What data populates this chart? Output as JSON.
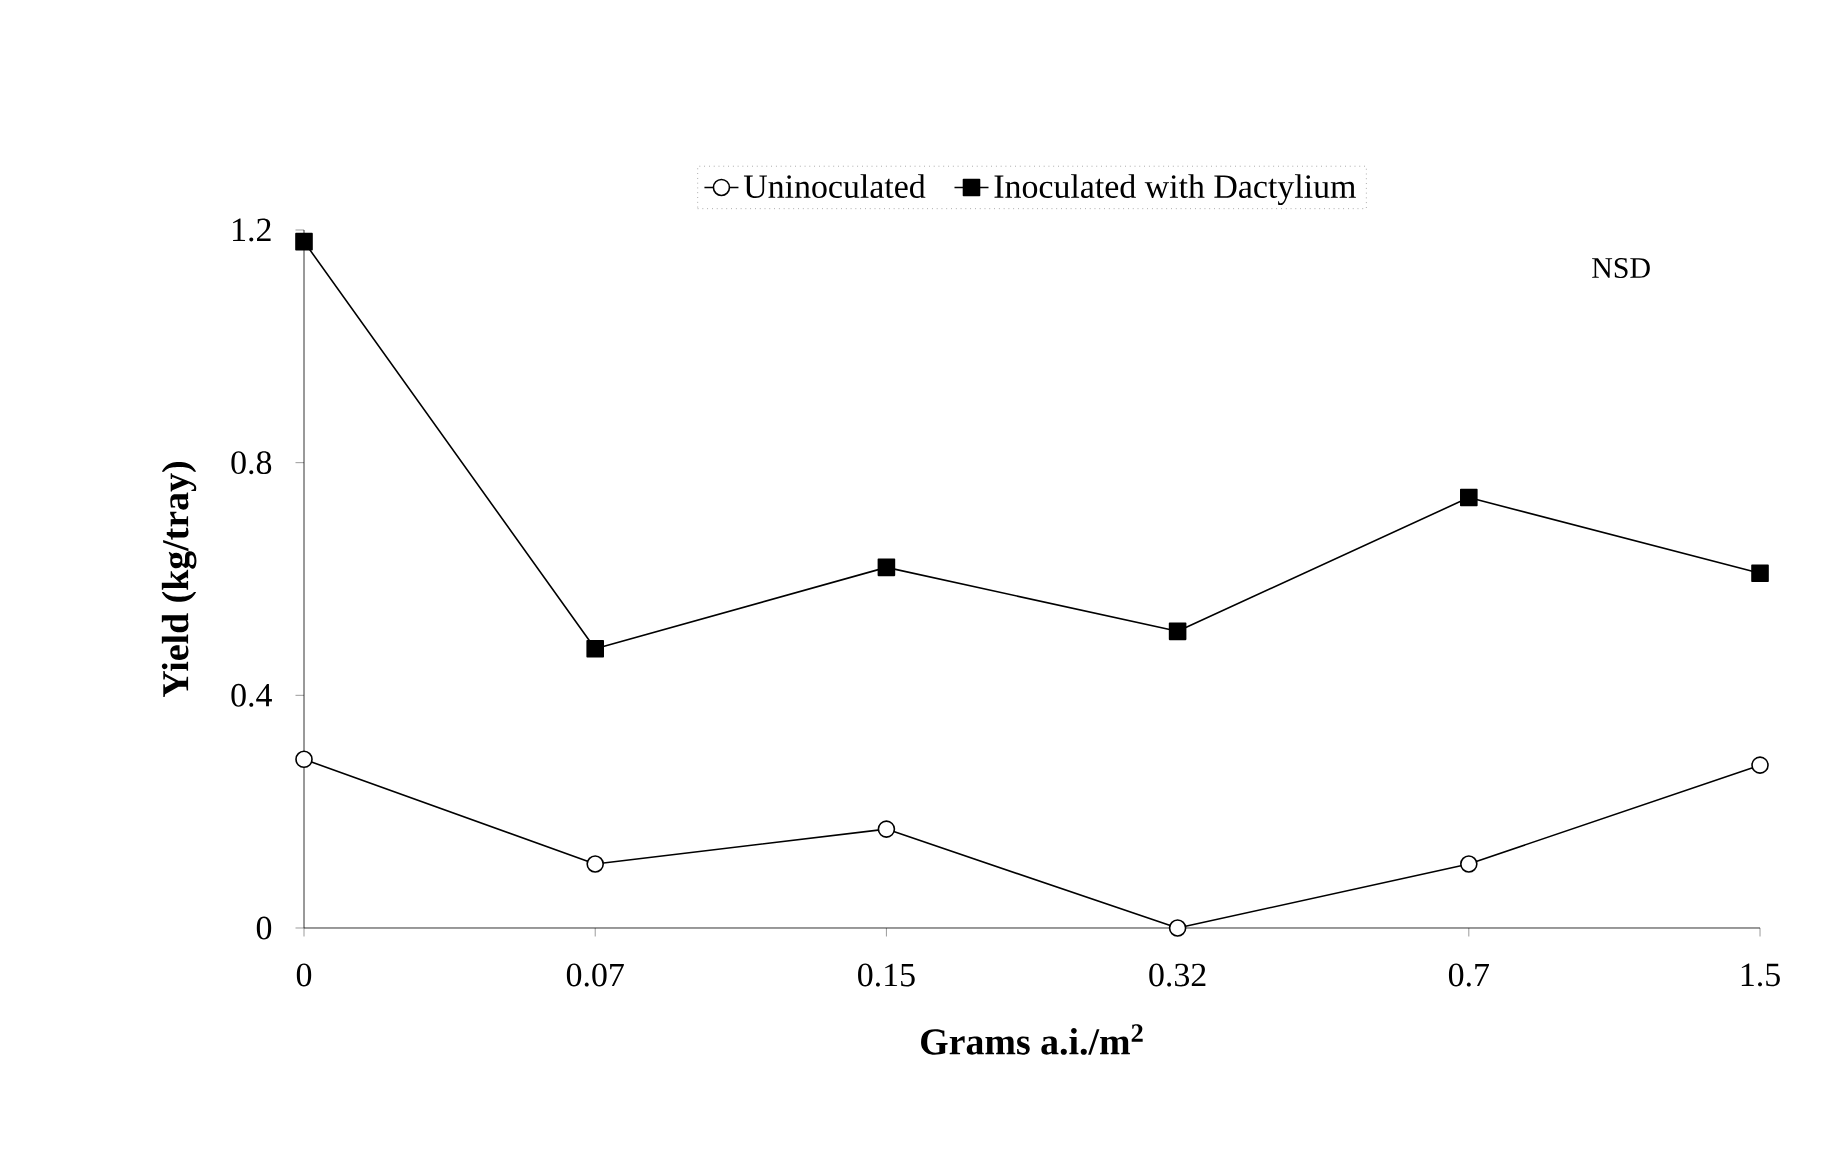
{
  "chart_data": {
    "type": "line",
    "xlabel": "Grams a.i./m$^{2}$",
    "ylabel": "Yield (kg/tray)",
    "categories": [
      "0",
      "0.07",
      "0.15",
      "0.32",
      "0.7",
      "1.5"
    ],
    "series": [
      {
        "name": "Uninoculated",
        "color": "#000000",
        "marker": "circle",
        "values": [
          0.29,
          0.11,
          0.17,
          0.0,
          0.11,
          0.28
        ]
      },
      {
        "name": "Inoculated with Dactylium",
        "color": "#000000",
        "marker": "square",
        "values": [
          1.18,
          0.48,
          0.62,
          0.51,
          0.74,
          0.61
        ]
      }
    ],
    "ylim": [
      0,
      1.2
    ],
    "yticks": [
      0,
      0.4,
      0.8,
      1.2
    ],
    "legend": "top",
    "line_style": "solid",
    "annotations": [
      "NSD"
    ]
  }
}
